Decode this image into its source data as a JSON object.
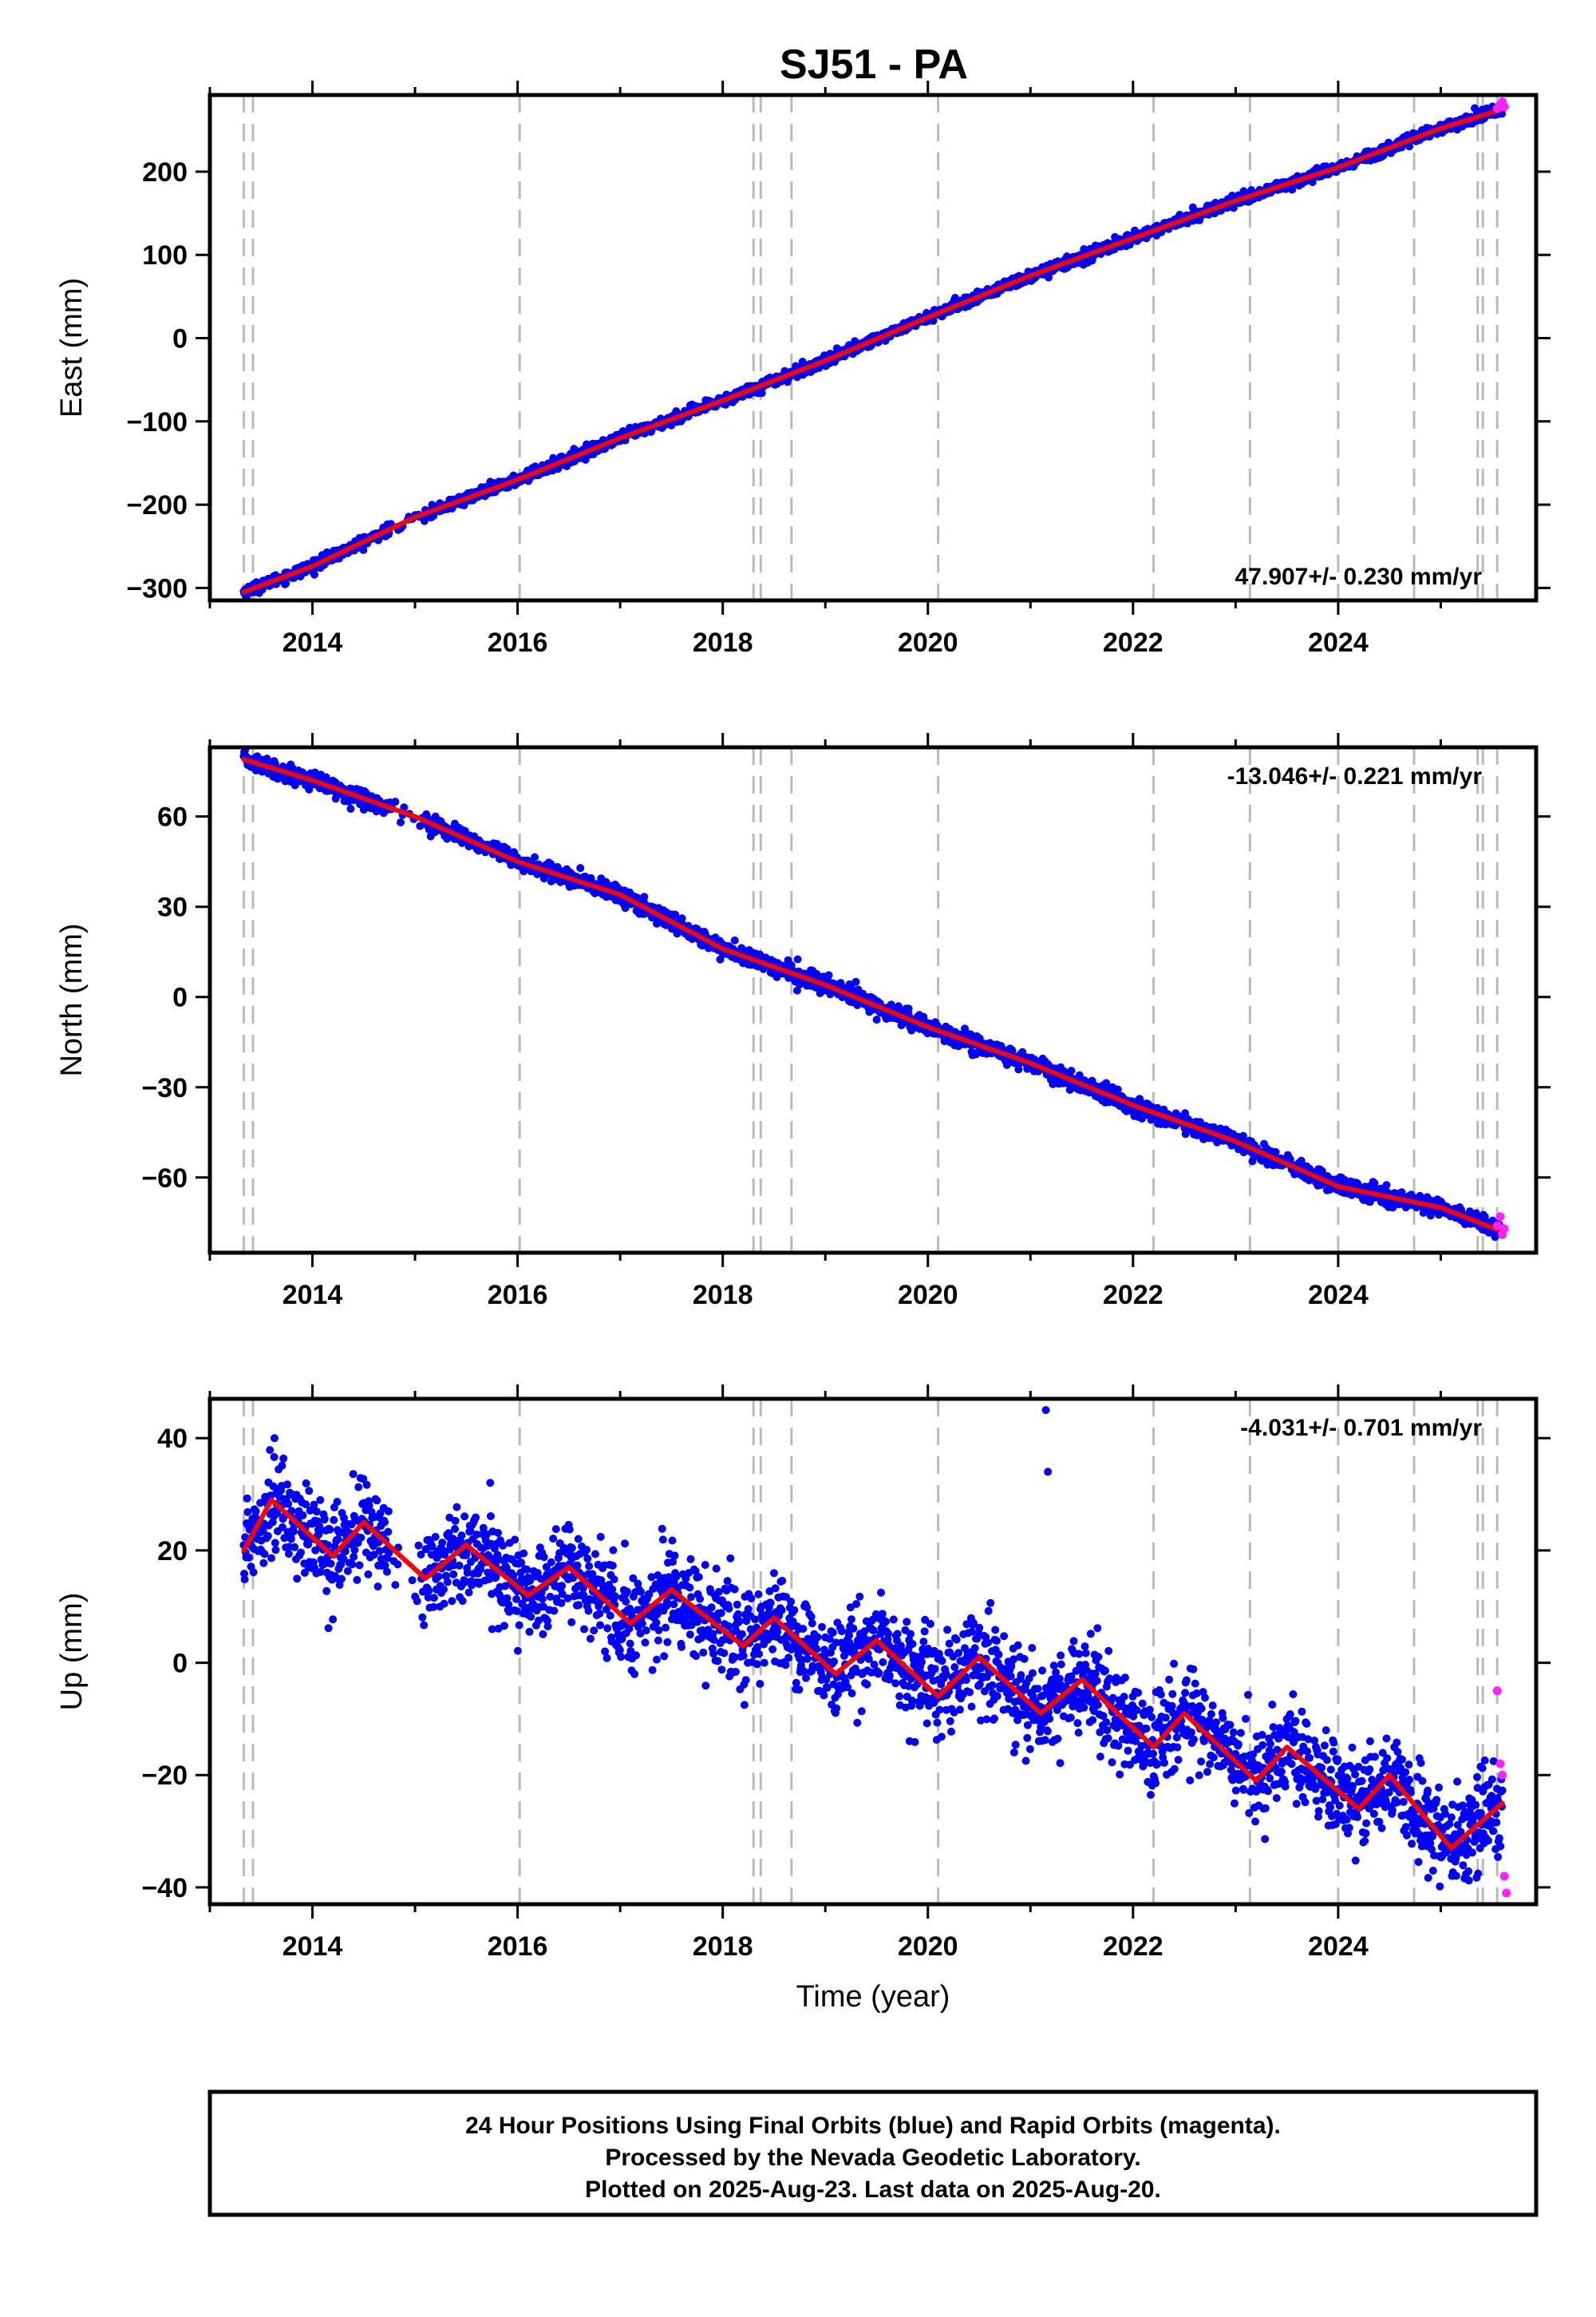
{
  "title": "SJ51 - PA",
  "colors": {
    "final_orbits": "#0000ff",
    "rapid_orbits": "#ff22ff",
    "model": "#ff0000",
    "event_lines": "#bbbbbb"
  },
  "event_lines_years": [
    2013.33,
    2013.42,
    2016.02,
    2018.3,
    2018.37,
    2018.67,
    2020.1,
    2022.2,
    2023.14,
    2024.0,
    2024.74,
    2025.36,
    2025.41,
    2025.55
  ],
  "caption": {
    "line1": "24 Hour Positions Using Final Orbits (blue) and Rapid Orbits (magenta).",
    "line2": "Processed by the Nevada Geodetic Laboratory.",
    "line3": "Plotted on 2025-Aug-23. Last data on 2025-Aug-20."
  },
  "chart_data": [
    {
      "type": "scatter",
      "component": "east",
      "ylabel": "East (mm)",
      "xlim": [
        2013.0,
        2025.93
      ],
      "ylim": [
        -315,
        292
      ],
      "xticks": [
        2014,
        2016,
        2018,
        2020,
        2022,
        2024
      ],
      "yticks": [
        -300,
        -200,
        -100,
        0,
        100,
        200
      ],
      "ytick_labels": [
        "−300",
        "−200",
        "−100",
        "0",
        "100",
        "200"
      ],
      "grid": false,
      "rate_label": "47.907+/- 0.230 mm/yr",
      "rate_position": "bottom-right",
      "trend": {
        "start_year": 2013.33,
        "start_value": -305,
        "rate": 47.907
      },
      "series": [
        {
          "x": [
            2013.33,
            2014.0,
            2015.0,
            2016.0,
            2017.0,
            2018.0,
            2019.0,
            2020.0,
            2021.0,
            2022.0,
            2023.0,
            2024.0,
            2025.0,
            2025.6
          ],
          "y": [
            -305,
            -274,
            -215,
            -170,
            -120,
            -75,
            -27,
            25,
            75,
            120,
            165,
            205,
            252,
            275
          ]
        }
      ],
      "rapid_points": {
        "x": [
          2025.55,
          2025.58,
          2025.6,
          2025.62
        ],
        "y": [
          276,
          280,
          284,
          278
        ]
      }
    },
    {
      "type": "scatter",
      "component": "north",
      "ylabel": "North (mm)",
      "xlim": [
        2013.0,
        2025.93
      ],
      "ylim": [
        -85,
        83
      ],
      "xticks": [
        2014,
        2016,
        2018,
        2020,
        2022,
        2024
      ],
      "yticks": [
        -60,
        -30,
        0,
        30,
        60
      ],
      "ytick_labels": [
        "−60",
        "−30",
        "0",
        "30",
        "60"
      ],
      "grid": false,
      "rate_label": "-13.046+/- 0.221 mm/yr",
      "rate_position": "top-right",
      "trend": {
        "start_year": 2013.33,
        "start_value": 79,
        "rate": -13.046
      },
      "series": [
        {
          "x": [
            2013.33,
            2014.0,
            2015.0,
            2016.0,
            2017.0,
            2018.0,
            2019.0,
            2020.0,
            2021.0,
            2022.0,
            2023.0,
            2024.0,
            2025.0,
            2025.6
          ],
          "y": [
            79,
            72,
            60,
            45,
            34,
            16,
            4,
            -10,
            -22,
            -36,
            -48,
            -63,
            -70,
            -78
          ]
        }
      ],
      "rapid_points": {
        "x": [
          2025.55,
          2025.58,
          2025.6,
          2025.62
        ],
        "y": [
          -76,
          -73,
          -79,
          -77
        ]
      }
    },
    {
      "type": "scatter",
      "component": "up",
      "ylabel": "Up (mm)",
      "xlabel": "Time (year)",
      "xlim": [
        2013.0,
        2025.93
      ],
      "ylim": [
        -43,
        47
      ],
      "xticks": [
        2014,
        2016,
        2018,
        2020,
        2022,
        2024
      ],
      "yticks": [
        -40,
        -20,
        0,
        20,
        40
      ],
      "ytick_labels": [
        "−40",
        "−20",
        "0",
        "20",
        "40"
      ],
      "grid": false,
      "rate_label": "-4.031+/- 0.701 mm/yr",
      "rate_position": "top-right",
      "trend": {
        "start_year": 2013.33,
        "start_value": 22,
        "rate": -4.031
      },
      "series": [
        {
          "x": [
            2013.33,
            2013.6,
            2014.2,
            2014.5,
            2015.1,
            2015.5,
            2016.1,
            2016.5,
            2017.1,
            2017.5,
            2018.2,
            2018.5,
            2019.1,
            2019.5,
            2020.1,
            2020.5,
            2021.1,
            2021.5,
            2022.2,
            2022.5,
            2023.2,
            2023.5,
            2024.2,
            2024.5,
            2025.1,
            2025.6
          ],
          "y": [
            20,
            29,
            19,
            25,
            15,
            21,
            12,
            17,
            7,
            13,
            3,
            8,
            -2,
            4,
            -6,
            1,
            -9,
            -3,
            -15,
            -9,
            -21,
            -15,
            -26,
            -20,
            -33,
            -25
          ]
        }
      ],
      "outliers": {
        "x": [
          2013.63,
          2021.15,
          2021.17
        ],
        "y": [
          40,
          45,
          34
        ]
      },
      "rapid_points": {
        "x": [
          2025.55,
          2025.58,
          2025.6,
          2025.62,
          2025.64
        ],
        "y": [
          -5,
          -18,
          -20,
          -38,
          -41
        ]
      }
    }
  ]
}
